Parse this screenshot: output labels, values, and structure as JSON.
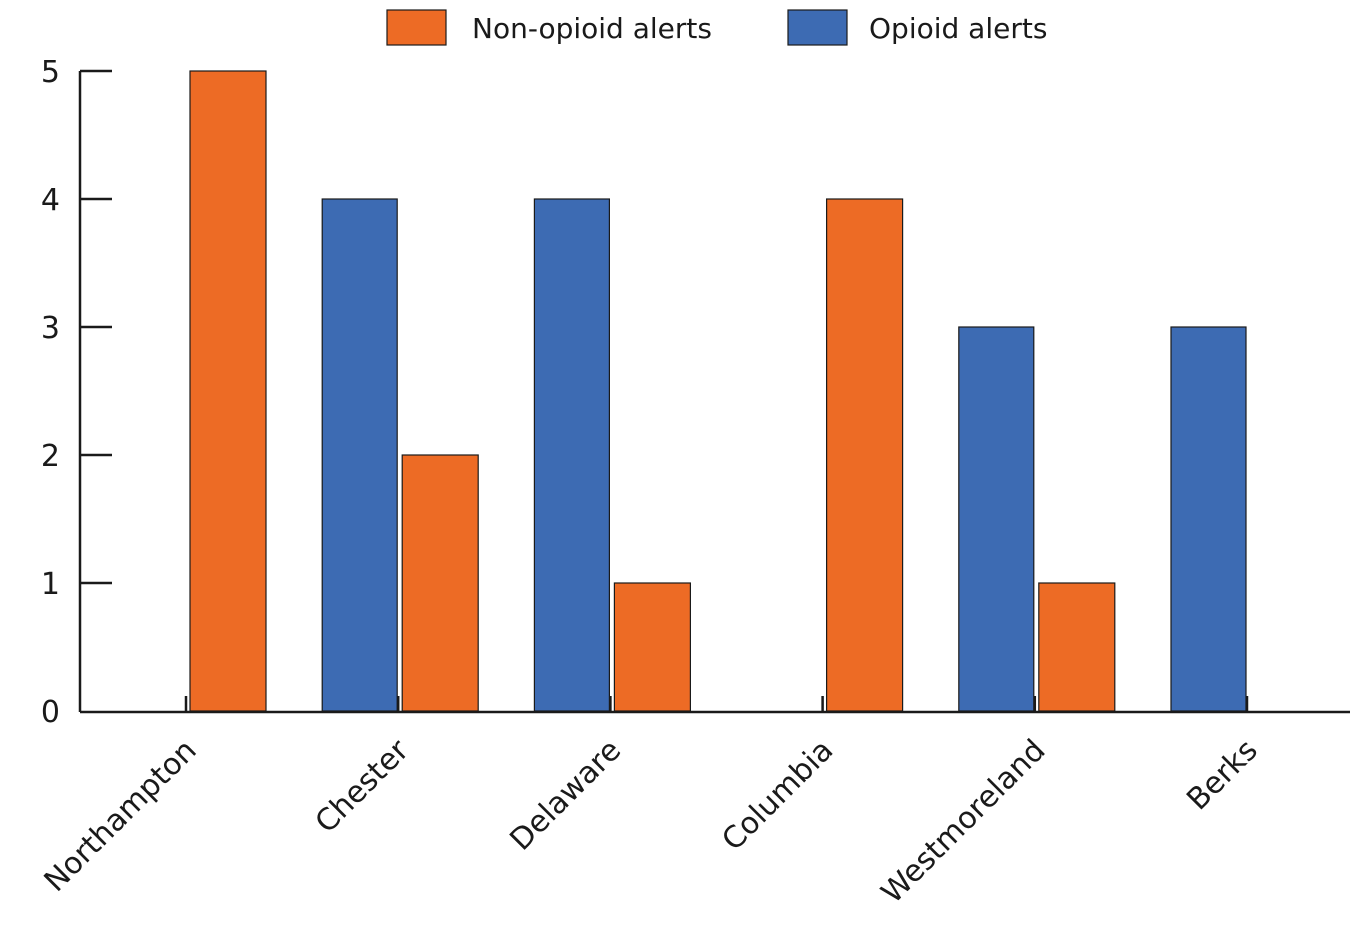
{
  "chart_data": {
    "type": "bar",
    "title": "",
    "xlabel": "",
    "ylabel": "",
    "categories": [
      "Northampton",
      "Chester",
      "Delaware",
      "Columbia",
      "Westmoreland",
      "Berks"
    ],
    "series": [
      {
        "name": "Opioid alerts",
        "color": "#3d6bb3",
        "values": [
          0,
          4,
          4,
          0,
          3,
          3
        ]
      },
      {
        "name": "Non-opioid alerts",
        "color": "#ed6b25",
        "values": [
          5,
          2,
          1,
          4,
          1,
          0
        ]
      }
    ],
    "legend_order": [
      "Non-opioid alerts",
      "Opioid alerts"
    ],
    "legend_position": "top",
    "y_ticks": [
      "0",
      "1",
      "2",
      "3",
      "4",
      "5"
    ],
    "ylim": [
      0,
      5
    ],
    "grid": false
  }
}
